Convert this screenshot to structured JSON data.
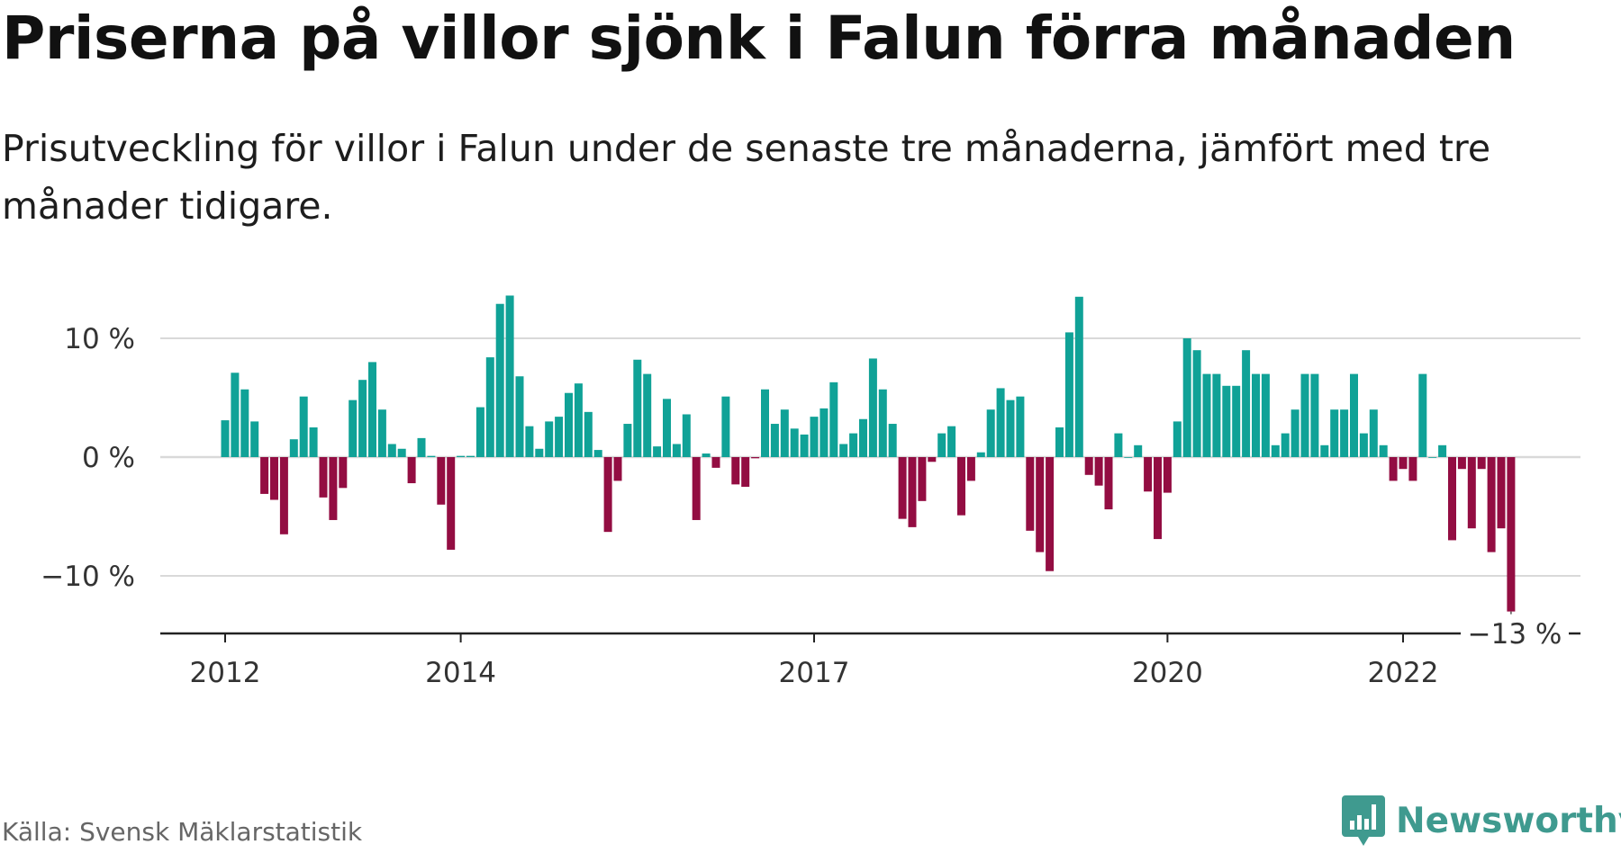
{
  "title": "Priserna på villor sjönk i Falun förra månaden",
  "subtitle": "Prisutveckling för villor i Falun under de senaste tre månaderna, jämfört med tre månader tidigare.",
  "source": "Källa: Svensk Mäklarstatistik",
  "brand": {
    "name": "Newsworthy",
    "icon": "newsworthy-logo-icon",
    "color": "#3f9a8f"
  },
  "colors": {
    "positive": "#10a297",
    "negative": "#930d42",
    "grid": "#d9d9d9",
    "axis": "#222222"
  },
  "chart_data": {
    "type": "bar",
    "title": "Priserna på villor sjönk i Falun förra månaden",
    "subtitle": "Prisutveckling för villor i Falun under de senaste tre månaderna, jämfört med tre månader tidigare.",
    "xlabel": "",
    "ylabel": "",
    "unit": "%",
    "x_start": "2012-01",
    "x_ticks": [
      "2012",
      "2014",
      "2017",
      "2020",
      "2022"
    ],
    "y_ticks": [
      "10 %",
      "0 %",
      "−10 %"
    ],
    "y_tick_values": [
      10,
      0,
      -10
    ],
    "ylim": [
      -15,
      14
    ],
    "grid": true,
    "annotation": {
      "label": "−13 %",
      "value": -13,
      "month": "2023-02"
    },
    "values": [
      3.1,
      7.1,
      5.7,
      3.0,
      -3.1,
      -3.6,
      -6.5,
      1.5,
      5.1,
      2.5,
      -3.4,
      -5.3,
      -2.6,
      4.8,
      6.5,
      8.0,
      4.0,
      1.1,
      0.7,
      -2.2,
      1.6,
      0.1,
      -4.0,
      -7.8,
      0.1,
      0.1,
      4.2,
      8.4,
      12.9,
      13.6,
      6.8,
      2.6,
      0.7,
      3.0,
      3.4,
      5.4,
      6.2,
      3.8,
      0.6,
      -6.3,
      -2.0,
      2.8,
      8.2,
      7.0,
      0.9,
      4.9,
      1.1,
      3.6,
      -5.3,
      0.3,
      -0.9,
      5.1,
      -2.3,
      -2.5,
      -0.1,
      5.7,
      2.8,
      4.0,
      2.4,
      1.9,
      3.4,
      4.1,
      6.3,
      1.1,
      2.0,
      3.2,
      8.3,
      5.7,
      2.8,
      -5.2,
      -5.9,
      -3.7,
      -0.4,
      2.0,
      2.6,
      -4.9,
      -2.0,
      0.4,
      4.0,
      5.8,
      4.8,
      5.1,
      -6.2,
      -8.0,
      -9.6,
      2.5,
      10.5,
      13.5,
      -1.5,
      -2.4,
      -4.4,
      2.0,
      0.0,
      1.0,
      -2.9,
      -6.9,
      -3.0,
      3.0,
      10.0,
      9.0,
      7.0,
      7.0,
      6.0,
      6.0,
      9.0,
      7.0,
      7.0,
      1.0,
      2.0,
      4.0,
      7.0,
      7.0,
      1.0,
      4.0,
      4.0,
      7.0,
      2.0,
      4.0,
      1.0,
      -2.0,
      -1.0,
      -2.0,
      7.0,
      0.0,
      1.0,
      -7.0,
      -1.0,
      -6.0,
      -1.0,
      -8.0,
      -6.0,
      -13.0
    ]
  }
}
